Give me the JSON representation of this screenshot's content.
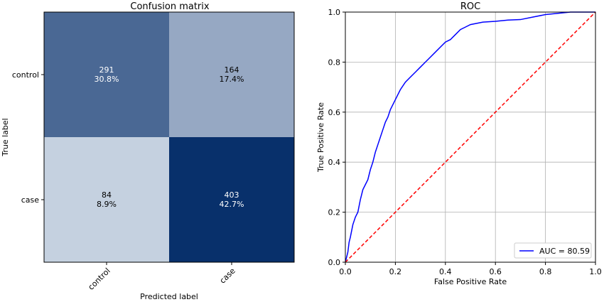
{
  "chart_data": [
    {
      "type": "heatmap",
      "title": "Confusion matrix",
      "xlabel": "Predicted label",
      "ylabel": "True label",
      "x_categories": [
        "control",
        "case"
      ],
      "y_categories": [
        "control",
        "case"
      ],
      "colormap": [
        "#f7fbff",
        "#08306b"
      ],
      "cells": [
        [
          {
            "count": "291",
            "percent": "30.8%"
          },
          {
            "count": "164",
            "percent": "17.4%"
          }
        ],
        [
          {
            "count": "84",
            "percent": "8.9%"
          },
          {
            "count": "403",
            "percent": "42.7%"
          }
        ]
      ]
    },
    {
      "type": "line",
      "title": "ROC",
      "xlabel": "False Positive Rate",
      "ylabel": "True Positive Rate",
      "xlim": [
        0.0,
        1.0
      ],
      "ylim": [
        0.0,
        1.0
      ],
      "xticks": [
        "0.0",
        "0.2",
        "0.4",
        "0.6",
        "0.8",
        "1.0"
      ],
      "yticks": [
        "0.0",
        "0.2",
        "0.4",
        "0.6",
        "0.8",
        "1.0"
      ],
      "grid": true,
      "legend_position": "lower-right",
      "series": [
        {
          "name": "AUC = 80.59",
          "color": "#0000ff",
          "x": [
            0.0,
            0.005,
            0.01,
            0.015,
            0.02,
            0.03,
            0.04,
            0.05,
            0.06,
            0.07,
            0.08,
            0.09,
            0.1,
            0.11,
            0.12,
            0.13,
            0.14,
            0.15,
            0.16,
            0.17,
            0.18,
            0.2,
            0.22,
            0.24,
            0.26,
            0.28,
            0.3,
            0.32,
            0.34,
            0.36,
            0.38,
            0.4,
            0.42,
            0.44,
            0.46,
            0.48,
            0.5,
            0.55,
            0.6,
            0.65,
            0.7,
            0.75,
            0.8,
            0.85,
            0.9,
            0.95,
            1.0
          ],
          "y": [
            0.0,
            0.02,
            0.04,
            0.08,
            0.1,
            0.15,
            0.18,
            0.2,
            0.25,
            0.29,
            0.31,
            0.33,
            0.37,
            0.4,
            0.44,
            0.47,
            0.5,
            0.53,
            0.56,
            0.58,
            0.61,
            0.65,
            0.69,
            0.72,
            0.74,
            0.76,
            0.78,
            0.8,
            0.82,
            0.84,
            0.86,
            0.88,
            0.89,
            0.91,
            0.93,
            0.94,
            0.95,
            0.96,
            0.963,
            0.968,
            0.97,
            0.98,
            0.99,
            0.995,
            1.0,
            1.0,
            1.0
          ]
        },
        {
          "name": "",
          "color": "#ff0000",
          "style": "dashed",
          "x": [
            0.0,
            1.0
          ],
          "y": [
            0.0,
            1.0
          ]
        }
      ]
    }
  ]
}
